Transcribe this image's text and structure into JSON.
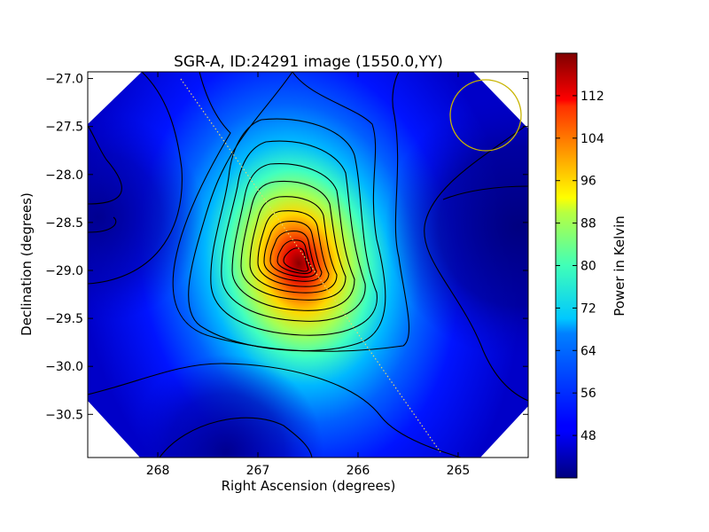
{
  "chart_data": {
    "type": "heatmap",
    "title": "SGR-A, ID:24291 image (1550.0,YY)",
    "xlabel": "Right Ascension (degrees)",
    "ylabel": "Declination (degrees)",
    "x_axis_inverted": true,
    "xlim": [
      268.7,
      264.3
    ],
    "ylim": [
      -30.95,
      -26.93
    ],
    "x_ticks": [
      268,
      267,
      266,
      265
    ],
    "x_tick_labels": [
      "268",
      "267",
      "266",
      "265"
    ],
    "y_ticks": [
      -27.0,
      -27.5,
      -28.0,
      -28.5,
      -29.0,
      -29.5,
      -30.0,
      -30.5
    ],
    "y_tick_labels": [
      "−27.0",
      "−27.5",
      "−28.0",
      "−28.5",
      "−29.0",
      "−29.5",
      "−30.0",
      "−30.5"
    ],
    "colormap": "jet",
    "colorbar": {
      "label": "Power in Kelvin",
      "range": [
        40,
        120
      ],
      "ticks": [
        48,
        56,
        64,
        72,
        80,
        88,
        96,
        104,
        112
      ],
      "tick_labels": [
        "48",
        "56",
        "64",
        "72",
        "80",
        "88",
        "96",
        "104",
        "112"
      ]
    },
    "peak": {
      "ra": 266.5,
      "dec": -28.95,
      "value": 120
    },
    "galactic_plane_line": {
      "from": [
        267.8,
        -27.0
      ],
      "to": [
        265.0,
        -30.9
      ],
      "color": "#e0d060"
    },
    "beam_circle": {
      "ra": 264.6,
      "dec": -27.35,
      "radius_deg": 0.36,
      "color": "#c8b400"
    },
    "contour_color": "#000000",
    "grid": false
  }
}
